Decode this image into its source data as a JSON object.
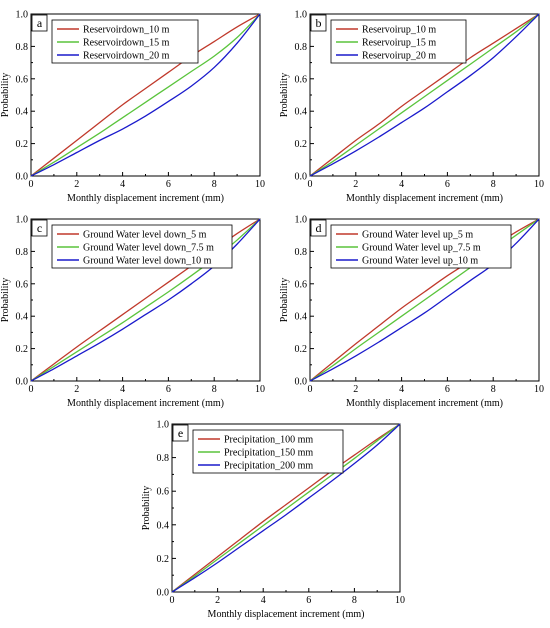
{
  "chart_data": [
    {
      "panel": "a",
      "type": "line",
      "xlabel": "Monthly displacement increment (mm)",
      "ylabel": "Probability",
      "xlim": [
        0,
        10
      ],
      "ylim": [
        0,
        1.0
      ],
      "xticks": [
        "0",
        "2",
        "4",
        "6",
        "8",
        "10"
      ],
      "yticks": [
        "0.0",
        "0.2",
        "0.4",
        "0.6",
        "0.8",
        "1.0"
      ],
      "legend_position": "top-left",
      "series": [
        {
          "name": "Reservoirdown_10 m",
          "color": "#c0392b",
          "x": [
            0,
            1,
            2,
            3,
            4,
            5,
            6,
            7,
            8,
            9,
            10
          ],
          "y": [
            0,
            0.11,
            0.22,
            0.33,
            0.44,
            0.54,
            0.64,
            0.74,
            0.83,
            0.92,
            1.0
          ]
        },
        {
          "name": "Reservoirdown_15 m",
          "color": "#5ac43c",
          "x": [
            0,
            1,
            2,
            3,
            4,
            5,
            6,
            7,
            8,
            9,
            10
          ],
          "y": [
            0,
            0.085,
            0.175,
            0.265,
            0.36,
            0.455,
            0.55,
            0.645,
            0.74,
            0.855,
            1.0
          ]
        },
        {
          "name": "Reservoirdown_20 m",
          "color": "#1a1acc",
          "x": [
            0,
            1,
            2,
            3,
            4,
            5,
            6,
            7,
            8,
            9,
            10
          ],
          "y": [
            0,
            0.07,
            0.145,
            0.22,
            0.29,
            0.37,
            0.46,
            0.555,
            0.67,
            0.82,
            1.0
          ]
        }
      ]
    },
    {
      "panel": "b",
      "type": "line",
      "xlabel": "Monthly displacement increment (mm)",
      "ylabel": "Probability",
      "xlim": [
        0,
        10
      ],
      "ylim": [
        0,
        1.0
      ],
      "xticks": [
        "0",
        "2",
        "4",
        "6",
        "8",
        "10"
      ],
      "yticks": [
        "0.0",
        "0.2",
        "0.4",
        "0.6",
        "0.8",
        "1.0"
      ],
      "legend_position": "top-left",
      "series": [
        {
          "name": "Reservoirup_10 m",
          "color": "#c0392b",
          "x": [
            0,
            1,
            2,
            3,
            4,
            5,
            6,
            7,
            8,
            9,
            10
          ],
          "y": [
            0,
            0.11,
            0.22,
            0.32,
            0.43,
            0.53,
            0.63,
            0.73,
            0.82,
            0.91,
            1.0
          ]
        },
        {
          "name": "Reservoirup_15 m",
          "color": "#5ac43c",
          "x": [
            0,
            1,
            2,
            3,
            4,
            5,
            6,
            7,
            8,
            9,
            10
          ],
          "y": [
            0,
            0.09,
            0.19,
            0.29,
            0.39,
            0.49,
            0.59,
            0.69,
            0.79,
            0.89,
            1.0
          ]
        },
        {
          "name": "Reservoirup_20 m",
          "color": "#1a1acc",
          "x": [
            0,
            1,
            2,
            3,
            4,
            5,
            6,
            7,
            8,
            9,
            10
          ],
          "y": [
            0,
            0.075,
            0.155,
            0.24,
            0.33,
            0.42,
            0.52,
            0.62,
            0.73,
            0.86,
            1.0
          ]
        }
      ]
    },
    {
      "panel": "c",
      "type": "line",
      "xlabel": "Monthly displacement increment (mm)",
      "ylabel": "Probability",
      "xlim": [
        0,
        10
      ],
      "ylim": [
        0,
        1.0
      ],
      "xticks": [
        "0",
        "2",
        "4",
        "6",
        "8",
        "10"
      ],
      "yticks": [
        "0.0",
        "0.2",
        "0.4",
        "0.6",
        "0.8",
        "1.0"
      ],
      "legend_position": "top-left",
      "series": [
        {
          "name": "Ground Water level down_5 m",
          "color": "#c0392b",
          "x": [
            0,
            1,
            2,
            3,
            4,
            5,
            6,
            7,
            8,
            9,
            10
          ],
          "y": [
            0,
            0.105,
            0.21,
            0.31,
            0.41,
            0.51,
            0.61,
            0.71,
            0.81,
            0.91,
            1.0
          ]
        },
        {
          "name": "Ground Water level down_7.5 m",
          "color": "#5ac43c",
          "x": [
            0,
            1,
            2,
            3,
            4,
            5,
            6,
            7,
            8,
            9,
            10
          ],
          "y": [
            0,
            0.09,
            0.18,
            0.27,
            0.36,
            0.455,
            0.55,
            0.65,
            0.755,
            0.87,
            1.0
          ]
        },
        {
          "name": "Ground Water level down_10 m",
          "color": "#1a1acc",
          "x": [
            0,
            1,
            2,
            3,
            4,
            5,
            6,
            7,
            8,
            9,
            10
          ],
          "y": [
            0,
            0.075,
            0.155,
            0.235,
            0.32,
            0.41,
            0.5,
            0.6,
            0.71,
            0.845,
            1.0
          ]
        }
      ]
    },
    {
      "panel": "d",
      "type": "line",
      "xlabel": "Monthly displacement increment (mm)",
      "ylabel": "Probability",
      "xlim": [
        0,
        10
      ],
      "ylim": [
        0,
        1.0
      ],
      "xticks": [
        "0",
        "2",
        "4",
        "6",
        "8",
        "10"
      ],
      "yticks": [
        "0.0",
        "0.2",
        "0.4",
        "0.6",
        "0.8",
        "1.0"
      ],
      "legend_position": "top-left",
      "series": [
        {
          "name": "Ground Water level up_5 m",
          "color": "#c0392b",
          "x": [
            0,
            1,
            2,
            3,
            4,
            5,
            6,
            7,
            8,
            9,
            10
          ],
          "y": [
            0,
            0.115,
            0.23,
            0.34,
            0.45,
            0.55,
            0.65,
            0.74,
            0.83,
            0.92,
            1.0
          ]
        },
        {
          "name": "Ground Water level up_7.5 m",
          "color": "#5ac43c",
          "x": [
            0,
            1,
            2,
            3,
            4,
            5,
            6,
            7,
            8,
            9,
            10
          ],
          "y": [
            0,
            0.095,
            0.2,
            0.3,
            0.4,
            0.5,
            0.6,
            0.7,
            0.8,
            0.9,
            1.0
          ]
        },
        {
          "name": "Ground Water level up_10 m",
          "color": "#1a1acc",
          "x": [
            0,
            1,
            2,
            3,
            4,
            5,
            6,
            7,
            8,
            9,
            10
          ],
          "y": [
            0,
            0.075,
            0.155,
            0.24,
            0.33,
            0.42,
            0.52,
            0.62,
            0.72,
            0.85,
            1.0
          ]
        }
      ]
    },
    {
      "panel": "e",
      "type": "line",
      "xlabel": "Monthly displacement increment (mm)",
      "ylabel": "Probability",
      "xlim": [
        0,
        10
      ],
      "ylim": [
        0,
        1.0
      ],
      "xticks": [
        "0",
        "2",
        "4",
        "6",
        "8",
        "10"
      ],
      "yticks": [
        "0.0",
        "0.2",
        "0.4",
        "0.6",
        "0.8",
        "1.0"
      ],
      "legend_position": "top-left",
      "series": [
        {
          "name": "Precipitation_100 mm",
          "color": "#c0392b",
          "x": [
            0,
            1,
            2,
            3,
            4,
            5,
            6,
            7,
            8,
            9,
            10
          ],
          "y": [
            0,
            0.105,
            0.21,
            0.315,
            0.42,
            0.52,
            0.62,
            0.72,
            0.815,
            0.91,
            1.0
          ]
        },
        {
          "name": "Precipitation_150 mm",
          "color": "#5ac43c",
          "x": [
            0,
            1,
            2,
            3,
            4,
            5,
            6,
            7,
            8,
            9,
            10
          ],
          "y": [
            0,
            0.095,
            0.195,
            0.295,
            0.395,
            0.495,
            0.595,
            0.695,
            0.795,
            0.9,
            1.0
          ]
        },
        {
          "name": "Precipitation_200 mm",
          "color": "#1a1acc",
          "x": [
            0,
            1,
            2,
            3,
            4,
            5,
            6,
            7,
            8,
            9,
            10
          ],
          "y": [
            0,
            0.085,
            0.175,
            0.27,
            0.365,
            0.46,
            0.56,
            0.66,
            0.765,
            0.875,
            1.0
          ]
        }
      ]
    }
  ]
}
